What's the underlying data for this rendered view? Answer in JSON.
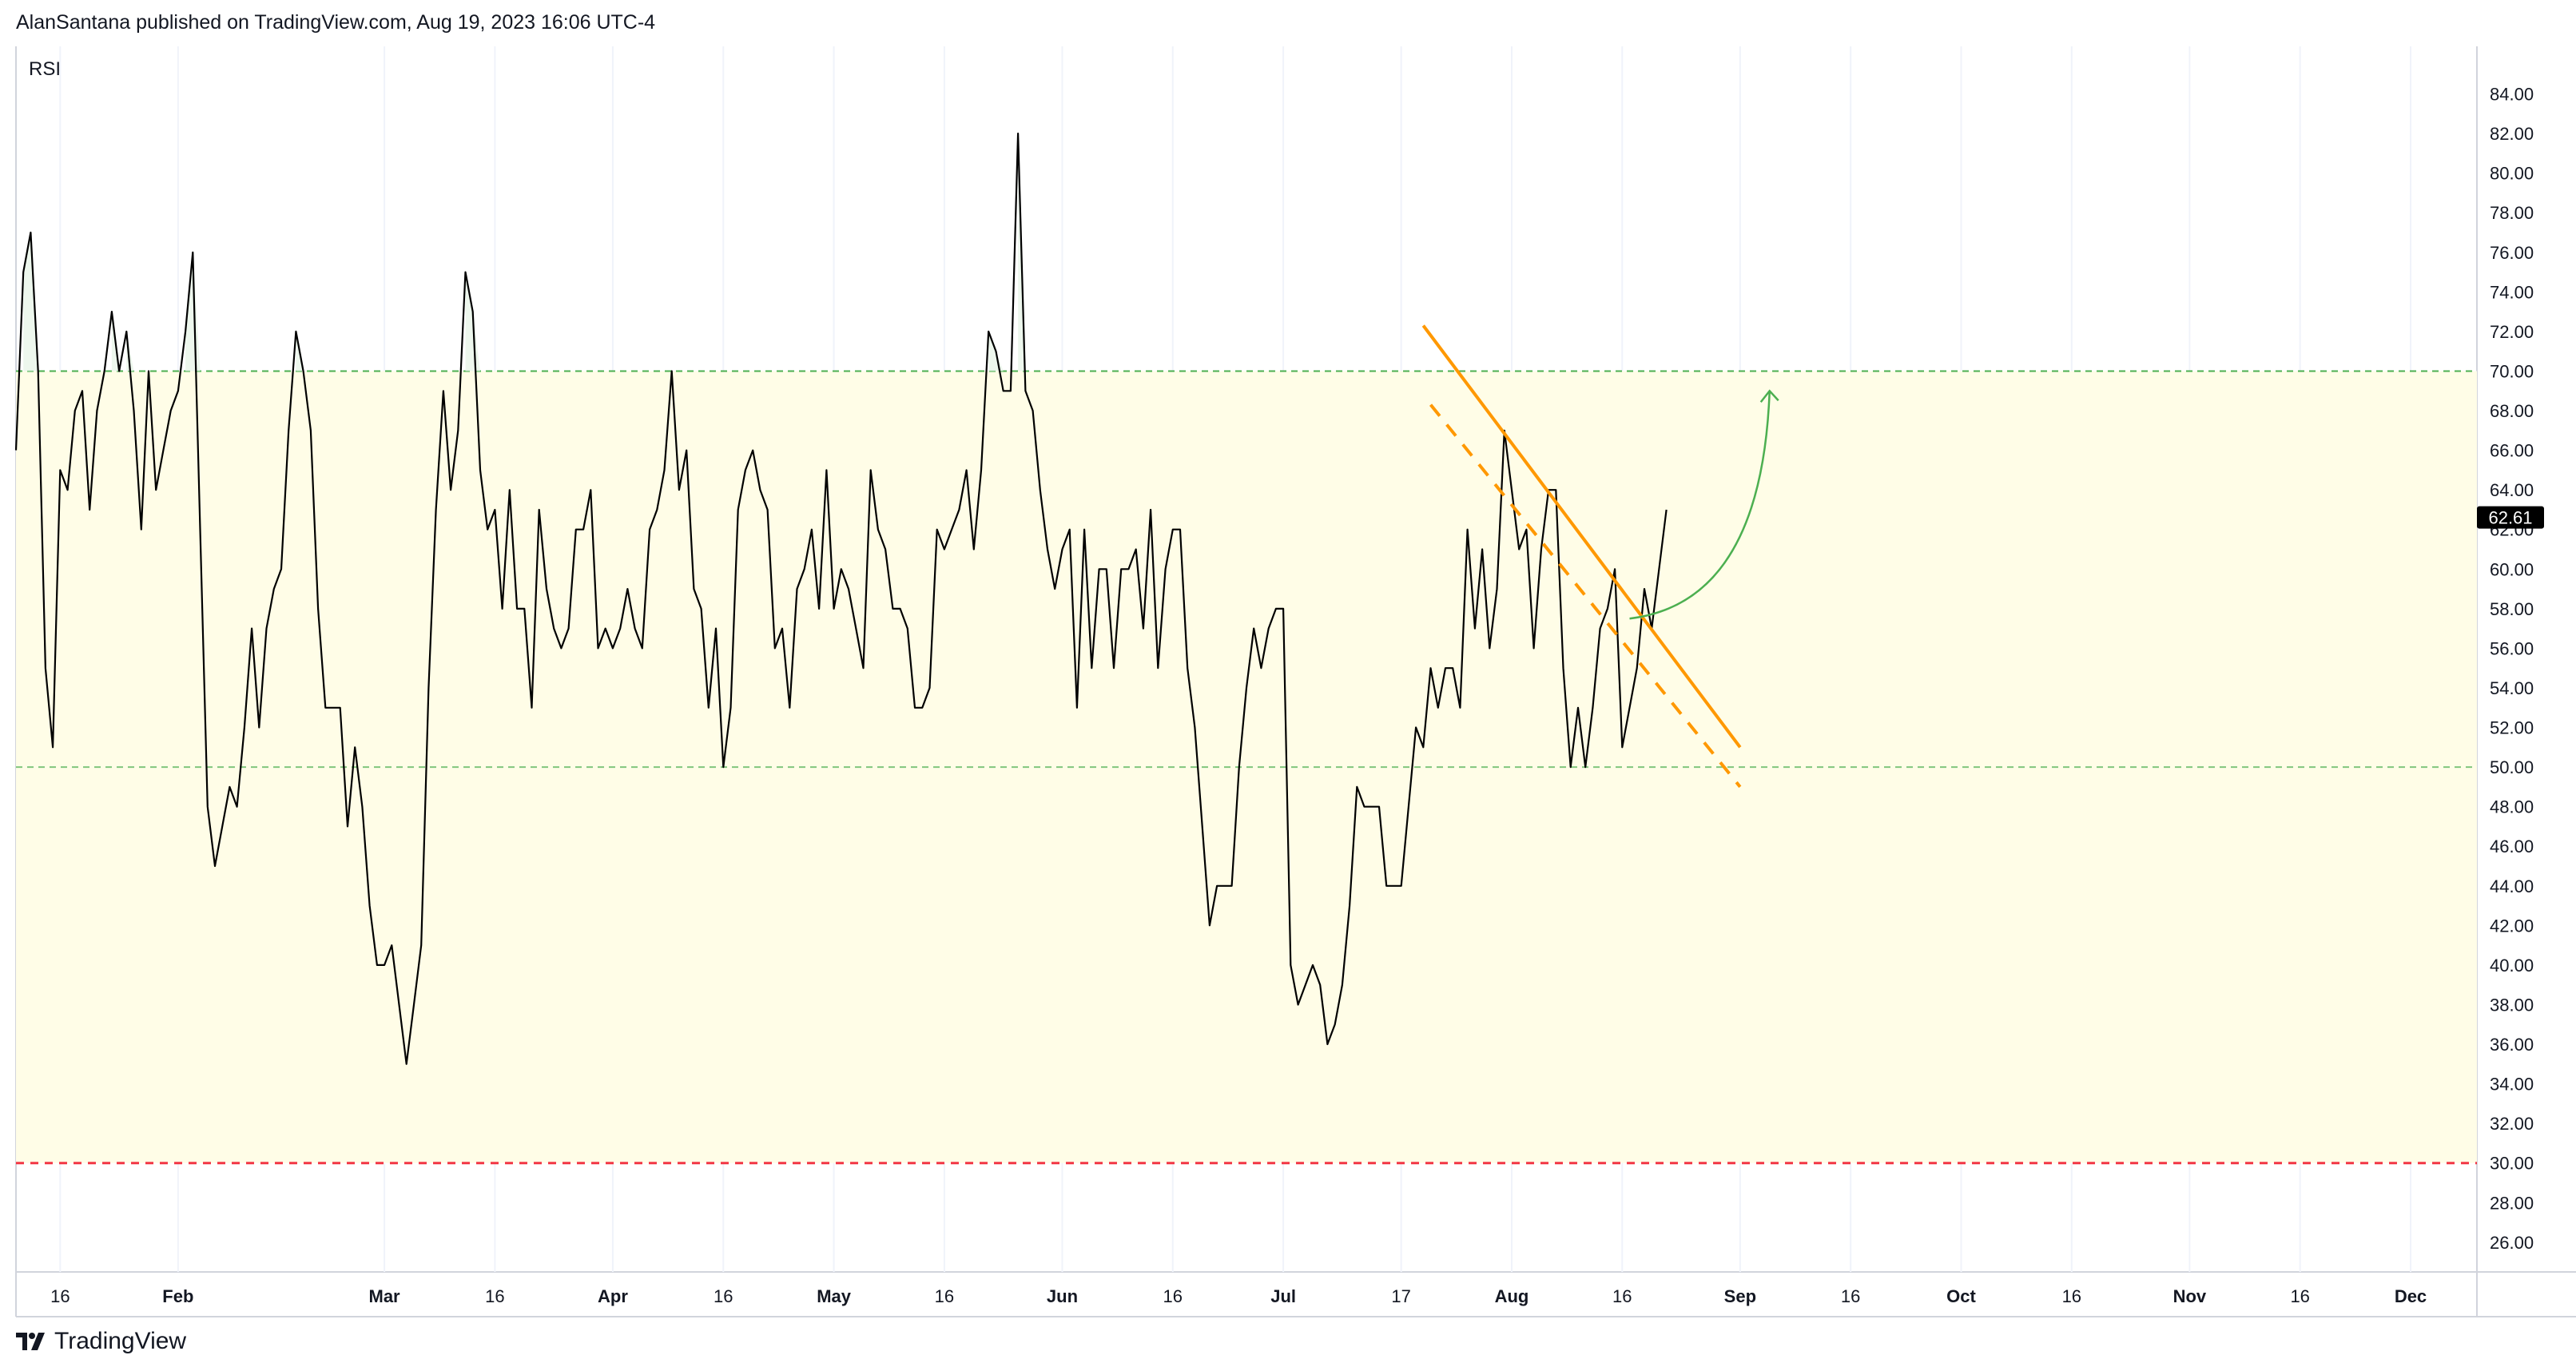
{
  "header": {
    "publisher": "AlanSantana published on TradingView.com, Aug 19, 2023 16:06 UTC-4"
  },
  "footer": {
    "brand": "TradingView"
  },
  "colors": {
    "band_fill": "#fffde7",
    "upper_band_line": "#4caf50",
    "lower_band_line": "#4caf50",
    "oversold_line": "#f23645",
    "rsi_line": "#000000",
    "trendline": "#ff9800",
    "projection_arrow": "#4caf50",
    "last_value_badge": "#000000",
    "grid": "#f0f3fa"
  },
  "chart_data": {
    "type": "line",
    "indicator_label": "RSI",
    "last_value_label": "62.61",
    "ylim": [
      24.5,
      86
    ],
    "y_ticks": [
      "84.00",
      "82.00",
      "80.00",
      "78.00",
      "76.00",
      "74.00",
      "72.00",
      "70.00",
      "68.00",
      "66.00",
      "64.00",
      "62.00",
      "60.00",
      "58.00",
      "56.00",
      "54.00",
      "52.00",
      "50.00",
      "48.00",
      "46.00",
      "44.00",
      "42.00",
      "40.00",
      "38.00",
      "36.00",
      "34.00",
      "32.00",
      "30.00",
      "28.00",
      "26.00"
    ],
    "x_start": "2023-01-10",
    "x_end": "2023-12-10",
    "x_ticks": [
      {
        "label": "16",
        "date": "2023-01-16"
      },
      {
        "label": "Feb",
        "date": "2023-02-01"
      },
      {
        "label": "Mar",
        "date": "2023-03-01"
      },
      {
        "label": "16",
        "date": "2023-03-16"
      },
      {
        "label": "Apr",
        "date": "2023-04-01"
      },
      {
        "label": "16",
        "date": "2023-04-16"
      },
      {
        "label": "May",
        "date": "2023-05-01"
      },
      {
        "label": "16",
        "date": "2023-05-16"
      },
      {
        "label": "Jun",
        "date": "2023-06-01"
      },
      {
        "label": "16",
        "date": "2023-06-16"
      },
      {
        "label": "Jul",
        "date": "2023-07-01"
      },
      {
        "label": "17",
        "date": "2023-07-17"
      },
      {
        "label": "Aug",
        "date": "2023-08-01"
      },
      {
        "label": "16",
        "date": "2023-08-16"
      },
      {
        "label": "Sep",
        "date": "2023-09-01"
      },
      {
        "label": "16",
        "date": "2023-09-16"
      },
      {
        "label": "Oct",
        "date": "2023-10-01"
      },
      {
        "label": "16",
        "date": "2023-10-16"
      },
      {
        "label": "Nov",
        "date": "2023-11-01"
      },
      {
        "label": "16",
        "date": "2023-11-16"
      },
      {
        "label": "Dec",
        "date": "2023-12-01"
      }
    ],
    "band": {
      "upper": 70,
      "lower": 50,
      "oversold": 30
    },
    "series": [
      {
        "start_date": "2023-01-10",
        "values": [
          66,
          75,
          77,
          70,
          55,
          51,
          65,
          64,
          68,
          69,
          63,
          68,
          70,
          73,
          70,
          72,
          68,
          62,
          70,
          64,
          66,
          68,
          69,
          72,
          76,
          62,
          48,
          45,
          47,
          49,
          48,
          52,
          57,
          52,
          57,
          59,
          60,
          67,
          72,
          70,
          67,
          58,
          53,
          53,
          53,
          47,
          51,
          48,
          43,
          40,
          40,
          41,
          38,
          35,
          38,
          41,
          54,
          63,
          69,
          64,
          67,
          75,
          73,
          65,
          62,
          63,
          58,
          64,
          58,
          58,
          53,
          63,
          59,
          57,
          56,
          57,
          62,
          62,
          64,
          56,
          57,
          56,
          57,
          59,
          57,
          56,
          62,
          63,
          65,
          70,
          64,
          66,
          59,
          58,
          53,
          57,
          50,
          53,
          63,
          65,
          66,
          64,
          63,
          56,
          57,
          53,
          59,
          60,
          62,
          58,
          65,
          58,
          60,
          59,
          57,
          55,
          65,
          62,
          61,
          58,
          58,
          57,
          53,
          53,
          54,
          62,
          61,
          62,
          63,
          65,
          61,
          65,
          72,
          71,
          69,
          69,
          82,
          69,
          68,
          64,
          61,
          59,
          61,
          62,
          53,
          62,
          55,
          60,
          60,
          55,
          60,
          60,
          61,
          57,
          63,
          55,
          60,
          62,
          62,
          55,
          52,
          47,
          42,
          44,
          44,
          44,
          50,
          54,
          57,
          55,
          57,
          58,
          58,
          40,
          38,
          39,
          40,
          39,
          36,
          37,
          39,
          43,
          49,
          48,
          48,
          48,
          44,
          44,
          44,
          48,
          52,
          51,
          55,
          53,
          55,
          55,
          53,
          62,
          57,
          61,
          56,
          59,
          67,
          64,
          61,
          62,
          56,
          61,
          64,
          64,
          55,
          50,
          53,
          50,
          53,
          57,
          58,
          60,
          51,
          53,
          55,
          59,
          57,
          60,
          63
        ]
      }
    ],
    "trendline_solid": {
      "from": {
        "date": "2023-07-20",
        "value": 72.3
      },
      "to": {
        "date": "2023-09-01",
        "value": 51.0
      }
    },
    "trendline_dashed": {
      "from": {
        "date": "2023-07-21",
        "value": 68.3
      },
      "to": {
        "date": "2023-09-01",
        "value": 49.0
      }
    },
    "projection_arrow": {
      "from": {
        "date": "2023-08-17",
        "value": 57.5
      },
      "to": {
        "date": "2023-09-05",
        "value": 69.0
      }
    }
  }
}
